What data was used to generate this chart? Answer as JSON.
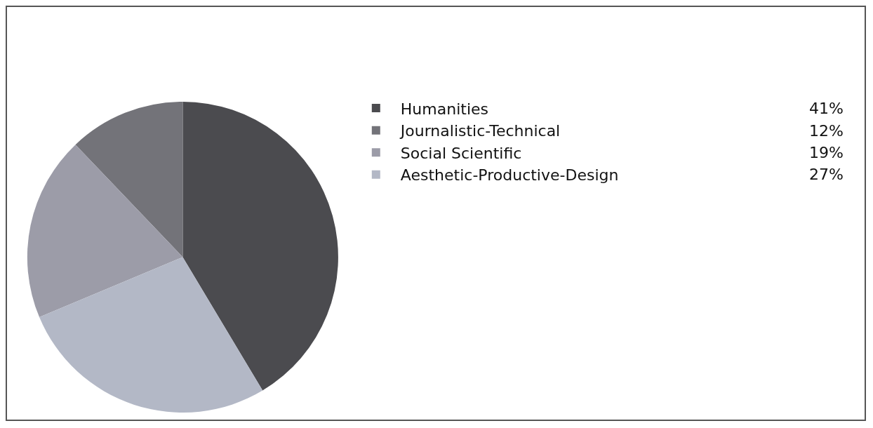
{
  "chart_data": {
    "type": "pie",
    "categories": [
      "Humanities",
      "Journalistic-Technical",
      "Social Scientific",
      "Aesthetic-Productive-Design"
    ],
    "values": [
      41,
      12,
      19,
      27
    ],
    "colors": [
      "#4b4b4f",
      "#737379",
      "#9c9ca8",
      "#b3b8c6"
    ],
    "value_labels": [
      "41%",
      "12%",
      "19%",
      "27%"
    ],
    "legend": "right"
  }
}
